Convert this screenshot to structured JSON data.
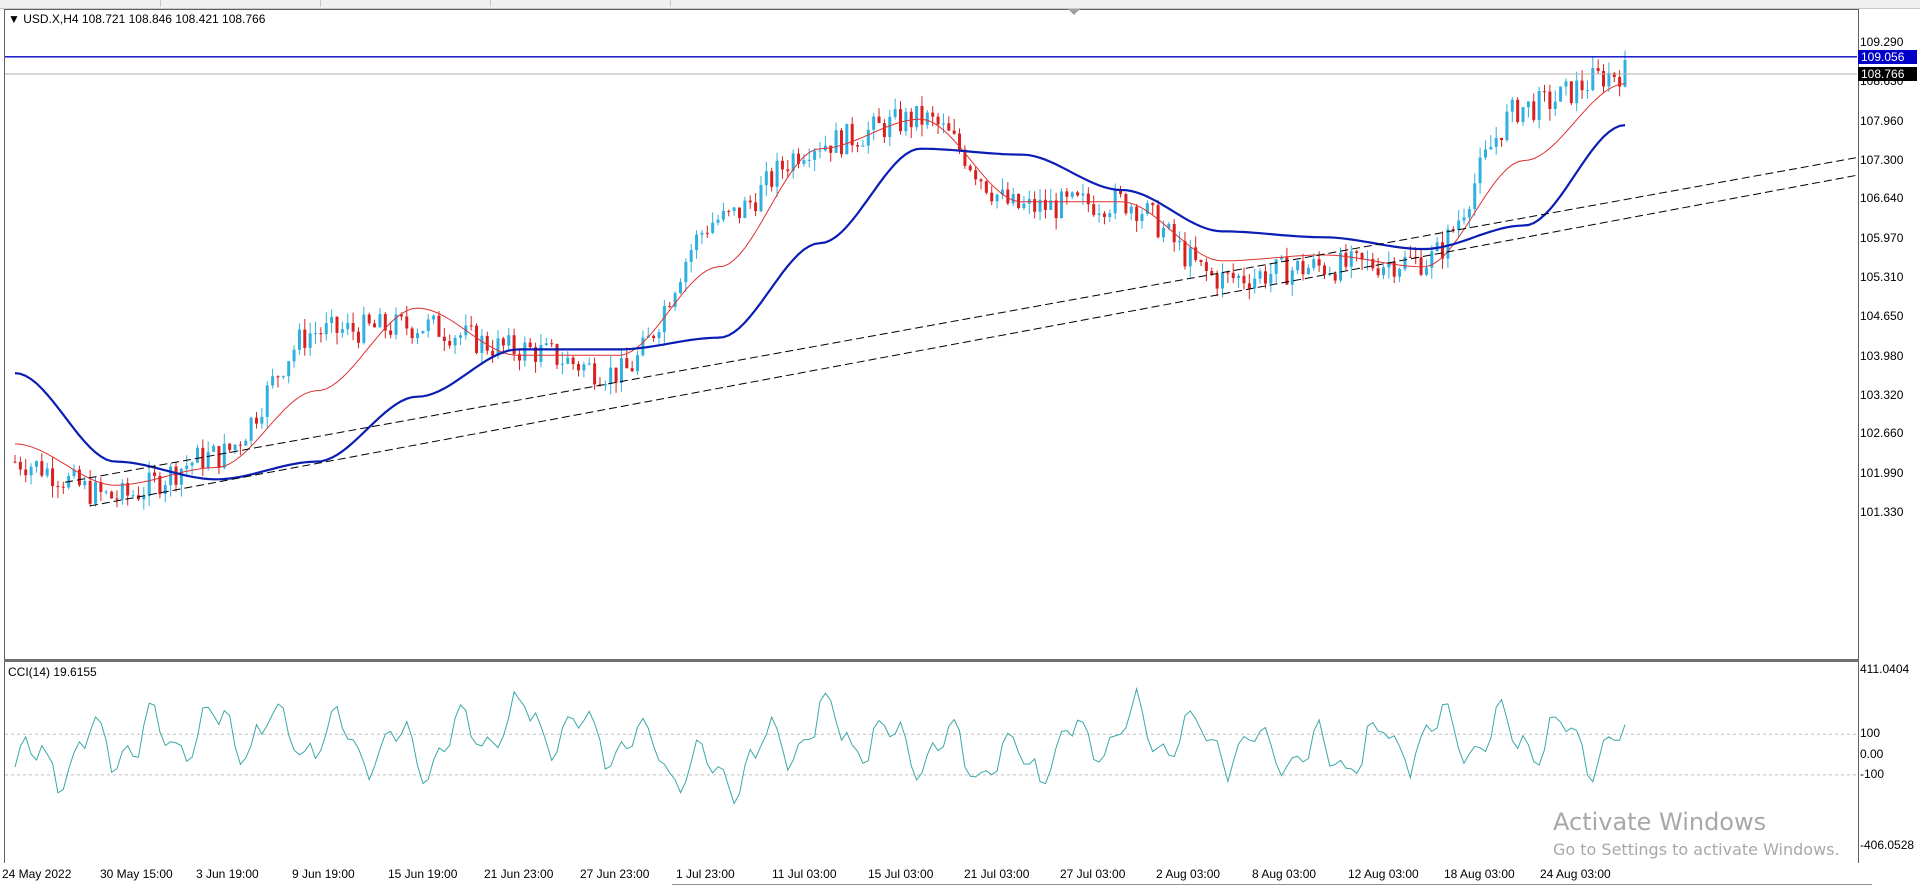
{
  "symbol_line": "▼ USD.X,H4  108.721 108.846 108.421 108.766",
  "indicator_line": "CCI(14) 19.6155",
  "price_axis_labels": [
    "109.290",
    "108.630",
    "107.960",
    "107.300",
    "106.640",
    "105.970",
    "105.310",
    "104.650",
    "103.980",
    "103.320",
    "102.660",
    "101.990",
    "101.330"
  ],
  "price_tags": {
    "horizontal_line": "109.056",
    "current_price": "108.766"
  },
  "cci_axis_labels": [
    "411.0404",
    "100",
    "0.00",
    "-100",
    "-406.0528"
  ],
  "time_labels": [
    "24 May 2022",
    "30 May 15:00",
    "3 Jun 19:00",
    "9 Jun 19:00",
    "15 Jun 19:00",
    "21 Jun 23:00",
    "27 Jun 23:00",
    "1 Jul 23:00",
    "11 Jul 03:00",
    "15 Jul 03:00",
    "21 Jul 03:00",
    "27 Jul 03:00",
    "2 Aug 03:00",
    "8 Aug 03:00",
    "12 Aug 03:00",
    "18 Aug 03:00",
    "24 Aug 03:00"
  ],
  "watermark": {
    "line1": "Activate Windows",
    "line2": "Go to Settings to activate Windows."
  },
  "colors": {
    "bull": "#30b0e0",
    "bear": "#d82020",
    "ma_fast": "#e03030",
    "ma_slow": "#0a1eb4",
    "cci": "#3aa8a8",
    "hline": "#0000c8",
    "trendline": "#000000"
  },
  "chart_data": {
    "type": "line",
    "title": "USD.X,H4",
    "ohlc_last": {
      "open": 108.721,
      "high": 108.846,
      "low": 108.421,
      "close": 108.766
    },
    "horizontal_level": 109.056,
    "ylim": [
      101.0,
      109.6
    ],
    "x": [
      "24 May 2022",
      "30 May 15:00",
      "3 Jun 19:00",
      "9 Jun 19:00",
      "15 Jun 19:00",
      "21 Jun 23:00",
      "27 Jun 23:00",
      "1 Jul 23:00",
      "11 Jul 03:00",
      "15 Jul 03:00",
      "21 Jul 03:00",
      "27 Jul 03:00",
      "2 Aug 03:00",
      "8 Aug 03:00",
      "12 Aug 03:00",
      "18 Aug 03:00",
      "24 Aug 03:00"
    ],
    "series": [
      {
        "values": [
          102.2,
          101.6,
          102.3,
          104.4,
          104.5,
          104.1,
          103.7,
          106.3,
          107.6,
          108.0,
          106.5,
          106.6,
          105.3,
          105.5,
          105.6,
          108.2,
          108.8
        ]
      },
      {
        "values": [
          102.5,
          101.8,
          102.1,
          103.4,
          104.8,
          104.0,
          104.0,
          105.5,
          107.5,
          108.0,
          106.6,
          106.6,
          105.6,
          105.7,
          105.5,
          107.3,
          108.6
        ]
      },
      {
        "values": [
          103.7,
          102.2,
          101.9,
          102.2,
          103.3,
          104.1,
          104.1,
          104.3,
          105.9,
          107.5,
          107.4,
          106.8,
          106.1,
          106.0,
          105.8,
          106.2,
          107.9
        ]
      }
    ],
    "cci": {
      "ylim": [
        -406.0528,
        411.0404
      ],
      "values": [
        -60,
        50,
        120,
        90,
        20,
        160,
        80,
        -120,
        150,
        20,
        -40,
        140,
        60,
        -20,
        100,
        90,
        40
      ]
    }
  }
}
